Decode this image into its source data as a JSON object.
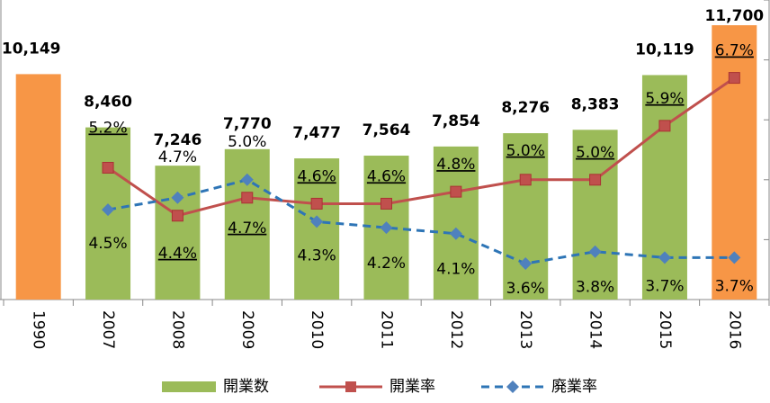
{
  "chart_data": {
    "type": "bar-line",
    "categories": [
      "1990",
      "2007",
      "2008",
      "2009",
      "2010",
      "2011",
      "2012",
      "2013",
      "2014",
      "2015",
      "2016"
    ],
    "ylim": [
      3000,
      12500
    ],
    "y2lim": [
      3,
      8
    ],
    "y2ticks": [
      3,
      4,
      5,
      6,
      7,
      8
    ],
    "series": [
      {
        "name": "開業数",
        "type": "bar",
        "colors": [
          "#f79646",
          "#9bbb59",
          "#9bbb59",
          "#9bbb59",
          "#9bbb59",
          "#9bbb59",
          "#9bbb59",
          "#9bbb59",
          "#9bbb59",
          "#9bbb59",
          "#f79646"
        ],
        "values": [
          10149,
          8460,
          7246,
          7770,
          7477,
          7564,
          7854,
          8276,
          8383,
          10119,
          11700
        ],
        "value_labels": [
          "10,149",
          "8,460",
          "7,246",
          "7,770",
          "7,477",
          "7,564",
          "7,854",
          "8,276",
          "8,383",
          "10,119",
          "11,700"
        ]
      },
      {
        "name": "開業率",
        "type": "line",
        "axis": "y2",
        "color": "#c0504d",
        "values": [
          null,
          5.2,
          4.4,
          4.7,
          4.6,
          4.6,
          4.8,
          5.0,
          5.0,
          5.9,
          6.7
        ],
        "value_labels": [
          null,
          "5.2%",
          "4.4%",
          "4.7%",
          "4.6%",
          "4.6%",
          "4.8%",
          "5.0%",
          "5.0%",
          "5.9%",
          "6.7%"
        ]
      },
      {
        "name": "廃業率",
        "type": "line",
        "axis": "y2",
        "color": "#2e75b6",
        "dashed": true,
        "values": [
          null,
          4.5,
          4.7,
          5.0,
          4.3,
          4.2,
          4.1,
          3.6,
          3.8,
          3.7,
          3.7
        ],
        "value_labels": [
          null,
          "4.5%",
          "4.7%",
          "5.0%",
          "4.3%",
          "4.2%",
          "4.1%",
          "3.6%",
          "3.8%",
          "3.7%",
          "3.7%"
        ]
      }
    ]
  }
}
